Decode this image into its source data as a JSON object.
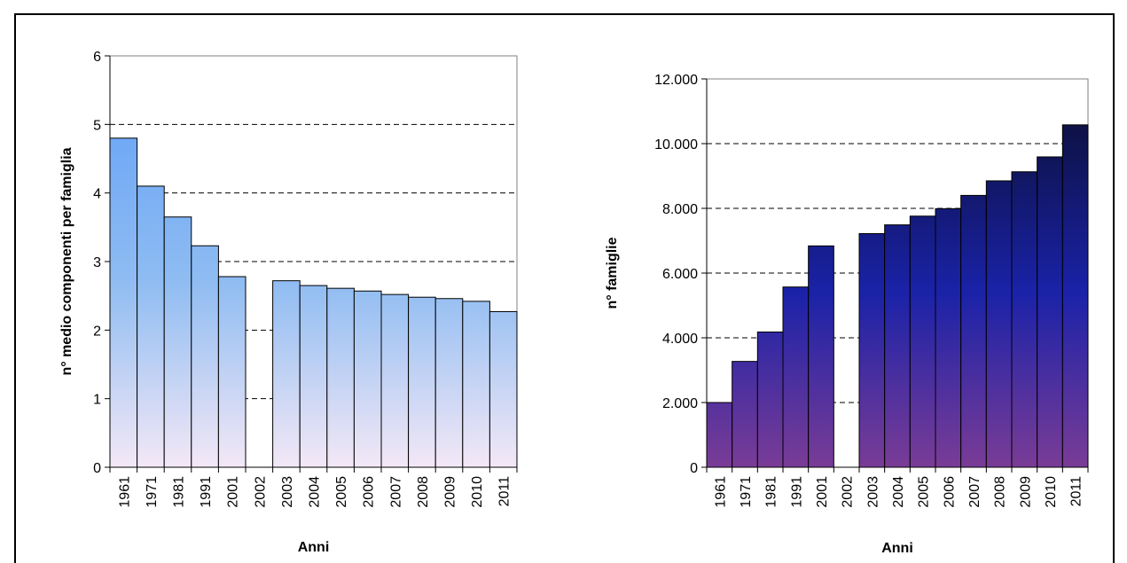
{
  "chart_data": [
    {
      "type": "bar",
      "title": "",
      "xlabel": "Anni",
      "ylabel": "n° medio componenti per famiglia",
      "categories": [
        "1961",
        "1971",
        "1981",
        "1991",
        "2001",
        "2002",
        "2003",
        "2004",
        "2005",
        "2006",
        "2007",
        "2008",
        "2009",
        "2010",
        "2011"
      ],
      "values": [
        4.8,
        4.1,
        3.65,
        3.23,
        2.78,
        null,
        2.72,
        2.65,
        2.61,
        2.57,
        2.52,
        2.48,
        2.46,
        2.42,
        2.27
      ],
      "ylim": [
        0,
        6
      ],
      "yticks": [
        "0",
        "1",
        "2",
        "3",
        "4",
        "5",
        "6"
      ],
      "grid": "dashed horizontal",
      "legend": "none",
      "colors": {
        "bar_top": "#5f9ef7",
        "bar_mid": "#8fbcf2",
        "bar_bottom": "#f3e8f6"
      }
    },
    {
      "type": "bar",
      "title": "",
      "xlabel": "Anni",
      "ylabel": "n° famiglie",
      "categories": [
        "1961",
        "1971",
        "1981",
        "1991",
        "2001",
        "2002",
        "2003",
        "2004",
        "2005",
        "2006",
        "2007",
        "2008",
        "2009",
        "2010",
        "2011"
      ],
      "values": [
        2000,
        3270,
        4180,
        5570,
        6840,
        null,
        7220,
        7490,
        7760,
        7990,
        8400,
        8850,
        9130,
        9590,
        10580
      ],
      "ylim": [
        0,
        12000
      ],
      "yticks": [
        "0",
        "2.000",
        "4.000",
        "6.000",
        "8.000",
        "10.000",
        "12.000"
      ],
      "grid": "dashed horizontal",
      "legend": "none",
      "colors": {
        "bar_top": "#0a0d2a",
        "bar_mid": "#1a22a8",
        "bar_bottom": "#7a3c96"
      }
    }
  ]
}
